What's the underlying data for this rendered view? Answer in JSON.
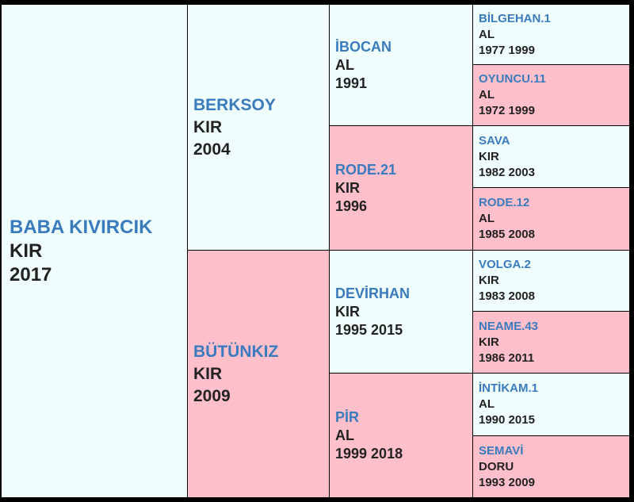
{
  "subject": {
    "name": "BABA KIVIRCIK",
    "color": "KIR",
    "years": "2017"
  },
  "sire": {
    "name": "BERKSOY",
    "color": "KIR",
    "years": "2004"
  },
  "dam": {
    "name": "BÜTÜNKIZ",
    "color": "KIR",
    "years": "2009"
  },
  "sire_sire": {
    "name": "İBOCAN",
    "color": "AL",
    "years": "1991"
  },
  "sire_dam": {
    "name": "RODE.21",
    "color": "KIR",
    "years": "1996"
  },
  "dam_sire": {
    "name": "DEVİRHAN",
    "color": "KIR",
    "years": "1995 2015"
  },
  "dam_dam": {
    "name": "PİR",
    "color": "AL",
    "years": "1999 2018"
  },
  "ggp": [
    {
      "name": "BİLGEHAN.1",
      "color": "AL",
      "years": "1977 1999"
    },
    {
      "name": "OYUNCU.11",
      "color": "AL",
      "years": "1972 1999"
    },
    {
      "name": "SAVA",
      "color": "KIR",
      "years": "1982 2003"
    },
    {
      "name": "RODE.12",
      "color": "AL",
      "years": "1985 2008"
    },
    {
      "name": "VOLGA.2",
      "color": "KIR",
      "years": "1983 2008"
    },
    {
      "name": "NEAME.43",
      "color": "KIR",
      "years": "1986 2011"
    },
    {
      "name": "İNTİKAM.1",
      "color": "AL",
      "years": "1990 2015"
    },
    {
      "name": "SEMAVİ",
      "color": "DORU",
      "years": "1993 2009"
    }
  ],
  "colors": {
    "male_bg": "#f0fdfd",
    "female_bg": "#ffc0cc",
    "name_text": "#3a7bbd",
    "border": "#000000"
  }
}
